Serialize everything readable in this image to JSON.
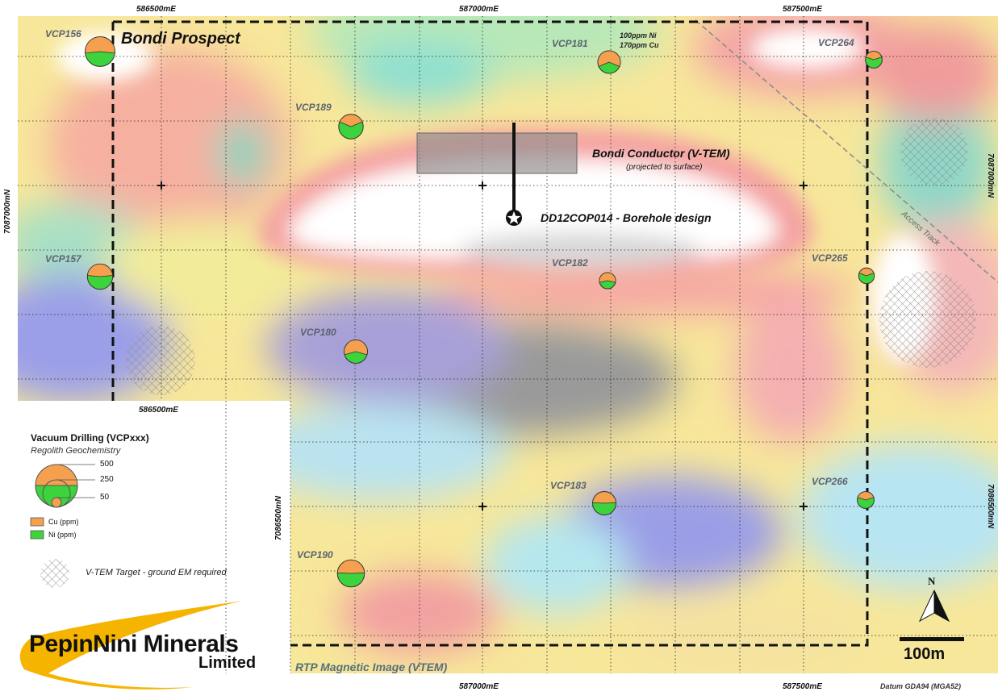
{
  "title": "Bondi Prospect",
  "image_caption": "RTP Magnetic Image (VTEM)",
  "datum": "Datum GDA94 (MGA52)",
  "scale_bar": "100m",
  "north_label": "N",
  "access_track": "Access Track",
  "conductor": {
    "label": "Bondi Conductor (V-TEM)",
    "sublabel": "(projected to surface)"
  },
  "borehole": {
    "label": "DD12COP014 - Borehole design"
  },
  "anomaly_note": [
    "100ppm Ni",
    "170ppm Cu"
  ],
  "coords": {
    "top_left_e": "586500mE",
    "top_mid_e": "587000mE",
    "top_right_e": "587500mE",
    "inner_e": "586500mE",
    "bottom_mid_e": "587000mE",
    "bottom_right_e": "587500mE",
    "left_n": "7087000mN",
    "right_n": "7087000mN",
    "inner_n": "7086500mN",
    "right_n2": "7086500mN"
  },
  "holes": [
    {
      "id": "VCP156",
      "cu": 250,
      "ni": 220
    },
    {
      "id": "VCP181",
      "cu": 170,
      "ni": 100
    },
    {
      "id": "VCP264",
      "cu": 60,
      "ni": 90
    },
    {
      "id": "VCP189",
      "cu": 120,
      "ni": 200
    },
    {
      "id": "VCP157",
      "cu": 160,
      "ni": 180
    },
    {
      "id": "VCP182",
      "cu": 80,
      "ni": 60
    },
    {
      "id": "VCP265",
      "cu": 50,
      "ni": 80
    },
    {
      "id": "VCP180",
      "cu": 170,
      "ni": 120
    },
    {
      "id": "VCP183",
      "cu": 140,
      "ni": 150
    },
    {
      "id": "VCP266",
      "cu": 60,
      "ni": 90
    },
    {
      "id": "VCP190",
      "cu": 190,
      "ni": 200
    }
  ],
  "legend": {
    "title": "Vacuum Drilling (VCPxxx)",
    "subtitle": "Regolith Geochemistry",
    "scale_values": [
      "500",
      "250",
      "50"
    ],
    "cu_label": "Cu (ppm)",
    "ni_label": "Ni (ppm)",
    "target_label": "V-TEM Target - ground EM required",
    "colors": {
      "cu": "#f4a04f",
      "ni": "#3cd33c"
    }
  },
  "logo": {
    "name": "PepinNini Minerals",
    "sub": "Limited"
  }
}
